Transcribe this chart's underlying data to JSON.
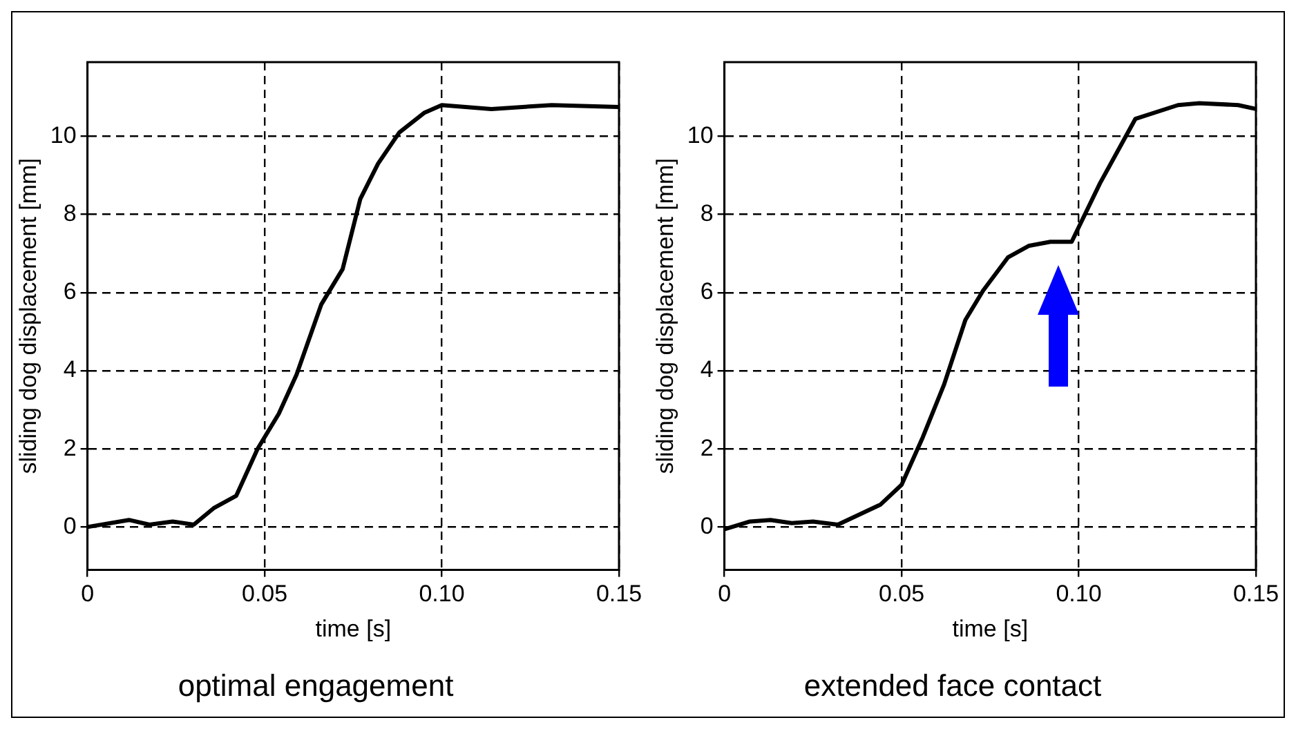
{
  "chart_data": [
    {
      "type": "line",
      "title": "optimal engagement",
      "xlabel": "time [s]",
      "ylabel": "sliding dog displacement [mm]",
      "x": [
        0,
        0.0117,
        0.0175,
        0.024,
        0.03,
        0.0356,
        0.042,
        0.048,
        0.054,
        0.059,
        0.066,
        0.072,
        0.077,
        0.082,
        0.088,
        0.095,
        0.1,
        0.114,
        0.131,
        0.15
      ],
      "series": [
        {
          "color": "#000000",
          "values": [
            0,
            0.18,
            0.06,
            0.14,
            0.06,
            0.48,
            0.8,
            2.0,
            2.9,
            3.9,
            5.7,
            6.6,
            8.4,
            9.3,
            10.1,
            10.6,
            10.8,
            10.7,
            10.8,
            10.75
          ]
        }
      ],
      "xlim": [
        0,
        0.15
      ],
      "xticks": [
        0,
        0.05,
        {
          "value": 0.1,
          "label": "0.10"
        },
        0.15
      ],
      "ylim": [
        -1.1,
        11.9
      ],
      "yticks": [
        0,
        2,
        4,
        6,
        8,
        10
      ],
      "grid": true,
      "legend": false,
      "marker": "none",
      "line_style": "solid"
    },
    {
      "type": "line",
      "title": "extended face contact",
      "xlabel": "time [s]",
      "ylabel": "sliding dog displacement [mm]",
      "x": [
        0,
        0.0072,
        0.013,
        0.019,
        0.025,
        0.032,
        0.044,
        0.05,
        0.056,
        0.062,
        0.068,
        0.073,
        0.08,
        0.086,
        0.092,
        0.098,
        0.106,
        0.116,
        0.128,
        0.134,
        0.145,
        0.15
      ],
      "series": [
        {
          "color": "#000000",
          "values": [
            -0.06,
            0.14,
            0.18,
            0.1,
            0.14,
            0.06,
            0.57,
            1.08,
            2.3,
            3.65,
            5.3,
            6.05,
            6.9,
            7.2,
            7.3,
            7.3,
            8.8,
            10.45,
            10.8,
            10.85,
            10.8,
            10.7
          ]
        }
      ],
      "xlim": [
        0,
        0.15
      ],
      "xticks": [
        0,
        0.05,
        {
          "value": 0.1,
          "label": "0.10"
        },
        0.15
      ],
      "ylim": [
        -1.1,
        11.9
      ],
      "yticks": [
        0,
        2,
        4,
        6,
        8,
        10
      ],
      "grid": true,
      "legend": false,
      "marker": "none",
      "line_style": "solid"
    }
  ]
}
